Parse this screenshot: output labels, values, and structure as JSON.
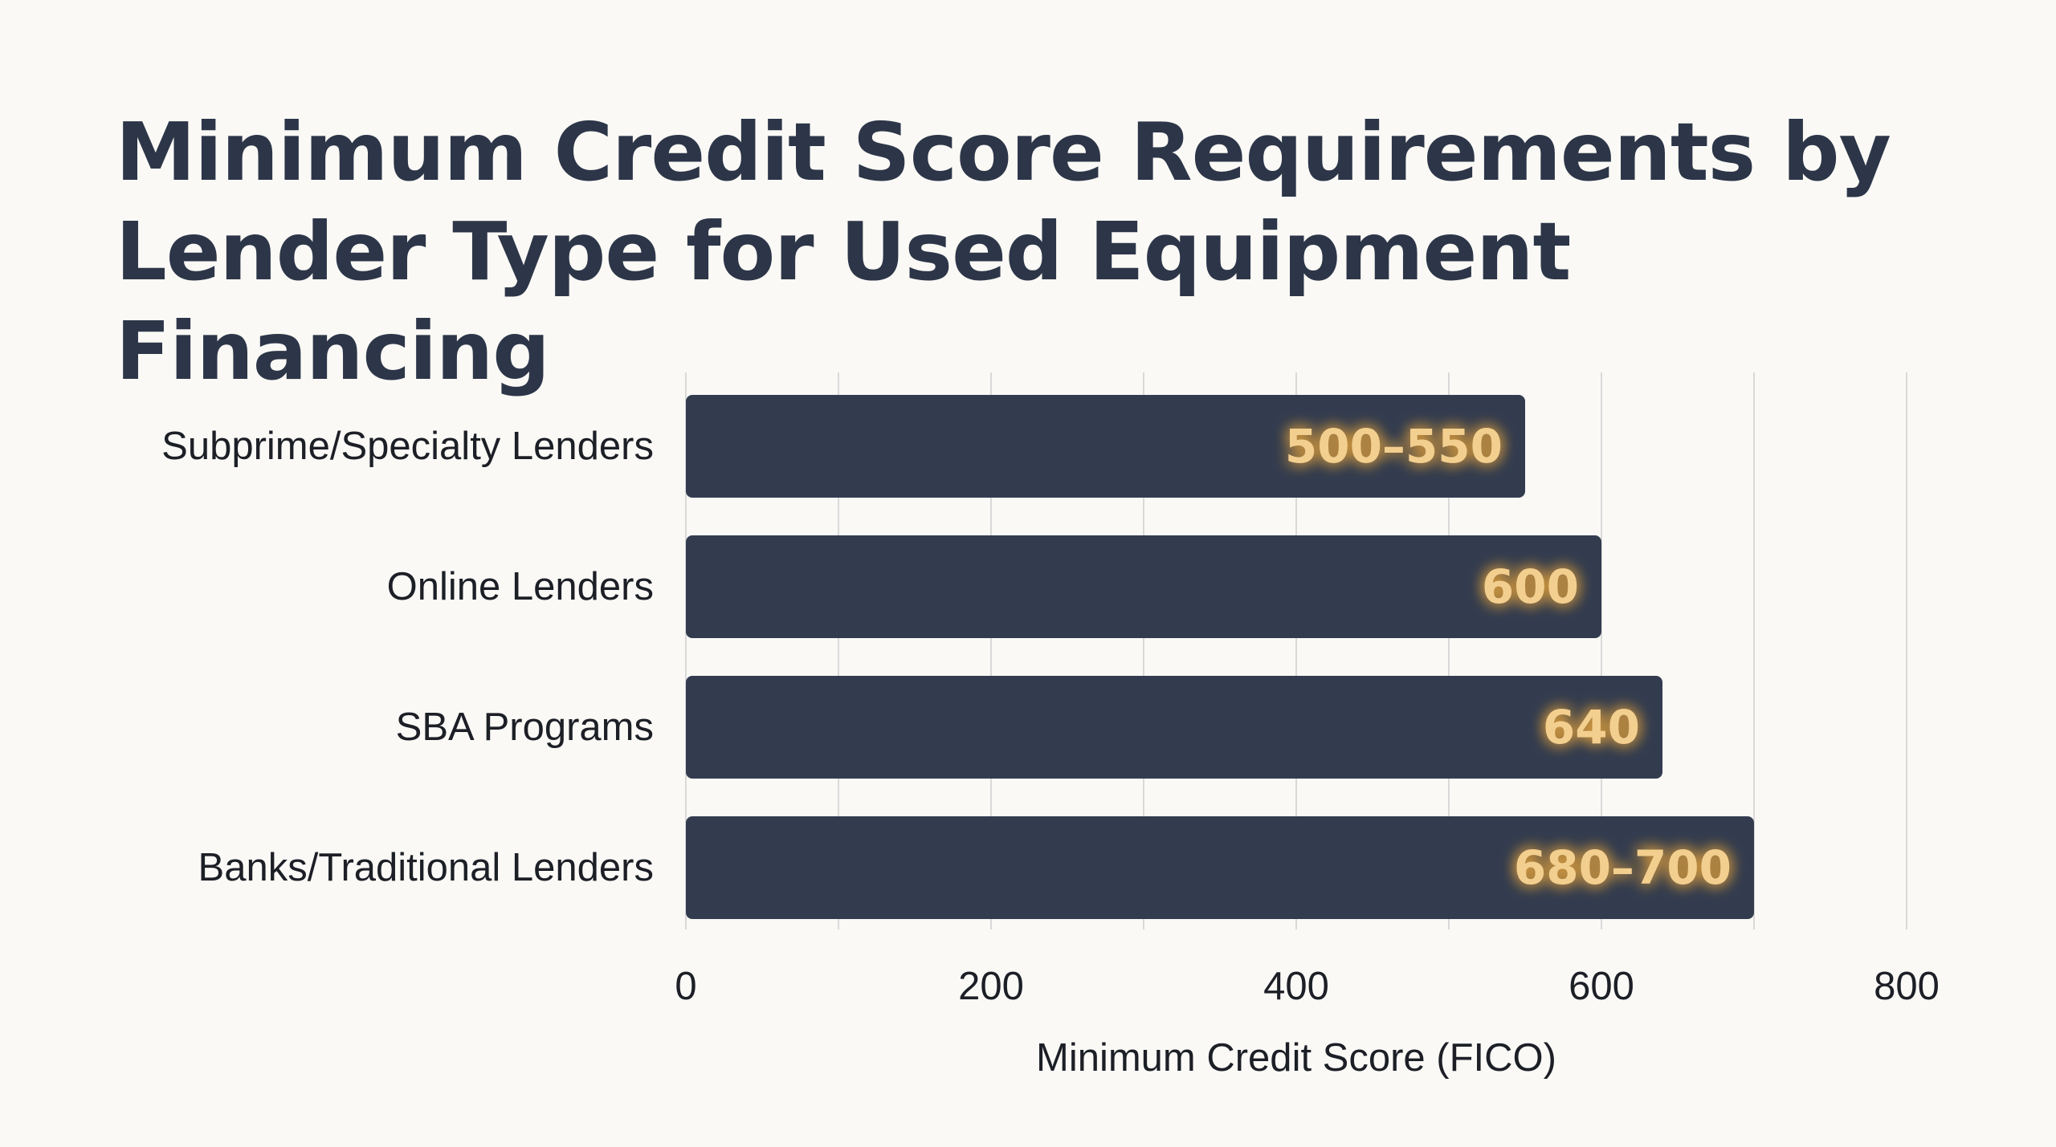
{
  "chart_data": {
    "type": "bar",
    "orientation": "horizontal",
    "title": "Minimum Credit Score Requirements by Lender Type for Used Equipment Financing",
    "xlabel": "Minimum Credit Score (FICO)",
    "ylabel": "",
    "categories": [
      "Subprime/Specialty Lenders",
      "Online Lenders",
      "SBA Programs",
      "Banks/Traditional Lenders"
    ],
    "values": [
      550,
      600,
      640,
      700
    ],
    "value_labels": [
      "500–550",
      "600",
      "640",
      "680–700"
    ],
    "xlim": [
      0,
      800
    ],
    "xticks": [
      0,
      200,
      400,
      600,
      800
    ],
    "grid": true,
    "legend": "none",
    "colors": {
      "bar": "#333c4f",
      "bar_label": "#f3cf8f",
      "label_glow": "#e9a53b",
      "grid": "#d9d9d9",
      "title": "#2d3648",
      "text": "#1c1f26"
    }
  }
}
